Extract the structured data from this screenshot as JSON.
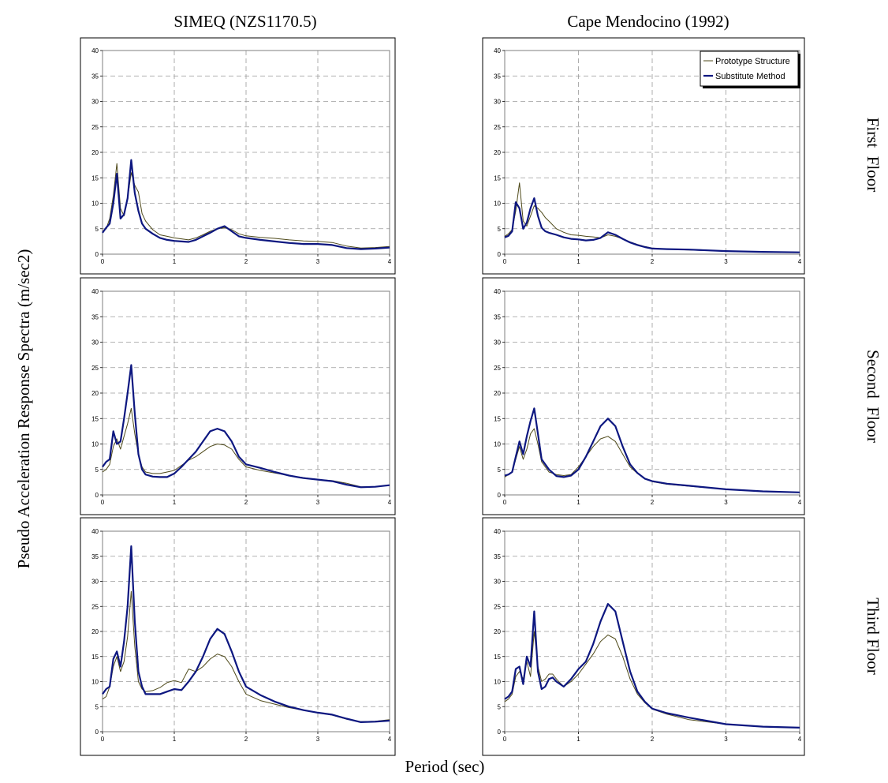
{
  "figure": {
    "ylabel": "Pseudo Acceleration Response Spectra (m/sec2)",
    "xlabel": "Period (sec)",
    "column_titles": [
      "SIMEQ (NZS1170.5)",
      "Cape Mendocino (1992)"
    ],
    "row_labels": [
      "First  Floor",
      "Second  Floor",
      "Third Floor"
    ],
    "legend": [
      "Prototype Structure",
      "Substitute Method"
    ],
    "colors": {
      "prototype": "#4f4a1a",
      "substitute": "#0d1780",
      "grid": "#9a9a9a",
      "frame": "#000000"
    }
  },
  "chart_data": [
    {
      "type": "line",
      "row": "First  Floor",
      "column": "SIMEQ (NZS1170.5)",
      "xlim": [
        0,
        4
      ],
      "ylim": [
        0,
        40
      ],
      "xticks": [
        0,
        1,
        2,
        3,
        4
      ],
      "yticks": [
        0,
        5,
        10,
        15,
        20,
        25,
        30,
        35,
        40
      ],
      "grid": true,
      "legend": false,
      "series": [
        {
          "name": "Prototype Structure",
          "x": [
            0,
            0.05,
            0.1,
            0.15,
            0.2,
            0.25,
            0.3,
            0.35,
            0.4,
            0.45,
            0.5,
            0.55,
            0.6,
            0.7,
            0.8,
            0.9,
            1.0,
            1.1,
            1.2,
            1.3,
            1.4,
            1.5,
            1.6,
            1.7,
            1.8,
            1.9,
            2.0,
            2.2,
            2.4,
            2.6,
            2.8,
            3.0,
            3.2,
            3.4,
            3.6,
            3.8,
            4.0
          ],
          "y": [
            4.5,
            5.0,
            7.0,
            11.5,
            17.8,
            9.0,
            7.5,
            11.0,
            16.0,
            13.5,
            12.2,
            8.0,
            6.5,
            4.8,
            3.8,
            3.5,
            3.2,
            3.0,
            2.8,
            3.2,
            3.8,
            4.5,
            5.0,
            5.2,
            4.8,
            4.0,
            3.6,
            3.3,
            3.1,
            2.8,
            2.6,
            2.5,
            2.3,
            1.6,
            1.2,
            1.3,
            1.5
          ]
        },
        {
          "name": "Substitute Method",
          "x": [
            0,
            0.05,
            0.1,
            0.15,
            0.2,
            0.25,
            0.3,
            0.35,
            0.4,
            0.45,
            0.5,
            0.55,
            0.6,
            0.7,
            0.8,
            0.9,
            1.0,
            1.1,
            1.2,
            1.3,
            1.4,
            1.5,
            1.6,
            1.7,
            1.8,
            1.9,
            2.0,
            2.2,
            2.4,
            2.6,
            2.8,
            3.0,
            3.2,
            3.4,
            3.6,
            3.8,
            4.0
          ],
          "y": [
            4.2,
            5.2,
            6.0,
            10.0,
            15.8,
            7.0,
            7.8,
            11.0,
            18.5,
            12.0,
            8.5,
            6.0,
            5.0,
            4.0,
            3.2,
            2.8,
            2.6,
            2.5,
            2.4,
            2.8,
            3.5,
            4.2,
            5.0,
            5.5,
            4.5,
            3.5,
            3.2,
            2.8,
            2.5,
            2.2,
            2.0,
            2.0,
            1.8,
            1.2,
            1.0,
            1.1,
            1.3
          ]
        }
      ]
    },
    {
      "type": "line",
      "row": "First  Floor",
      "column": "Cape Mendocino (1992)",
      "xlim": [
        0,
        4
      ],
      "ylim": [
        0,
        40
      ],
      "xticks": [
        0,
        1,
        2,
        3,
        4
      ],
      "yticks": [
        0,
        5,
        10,
        15,
        20,
        25,
        30,
        35,
        40
      ],
      "grid": true,
      "legend": true,
      "series": [
        {
          "name": "Prototype Structure",
          "x": [
            0,
            0.05,
            0.1,
            0.15,
            0.2,
            0.25,
            0.3,
            0.35,
            0.4,
            0.45,
            0.5,
            0.55,
            0.6,
            0.7,
            0.8,
            0.9,
            1.0,
            1.1,
            1.2,
            1.3,
            1.4,
            1.5,
            1.6,
            1.7,
            1.8,
            1.9,
            2.0,
            2.2,
            2.5,
            3.0,
            3.5,
            4.0
          ],
          "y": [
            3.5,
            4.0,
            4.8,
            8.5,
            14.0,
            6.5,
            5.5,
            7.5,
            9.5,
            9.0,
            8.2,
            7.2,
            6.5,
            5.0,
            4.3,
            3.8,
            3.7,
            3.5,
            3.4,
            3.2,
            3.8,
            3.5,
            3.0,
            2.4,
            1.9,
            1.5,
            1.2,
            1.0,
            0.8,
            0.6,
            0.45,
            0.35
          ]
        },
        {
          "name": "Substitute Method",
          "x": [
            0,
            0.05,
            0.1,
            0.15,
            0.2,
            0.25,
            0.3,
            0.35,
            0.4,
            0.45,
            0.5,
            0.55,
            0.6,
            0.7,
            0.8,
            0.9,
            1.0,
            1.1,
            1.2,
            1.3,
            1.4,
            1.5,
            1.6,
            1.7,
            1.8,
            1.9,
            2.0,
            2.2,
            2.5,
            3.0,
            3.5,
            4.0
          ],
          "y": [
            3.3,
            3.6,
            4.5,
            10.2,
            9.0,
            5.0,
            6.2,
            9.0,
            11.0,
            7.5,
            5.2,
            4.5,
            4.2,
            3.8,
            3.3,
            3.0,
            2.9,
            2.7,
            2.8,
            3.2,
            4.3,
            3.8,
            3.0,
            2.3,
            1.8,
            1.4,
            1.1,
            1.0,
            0.9,
            0.6,
            0.45,
            0.35
          ]
        }
      ]
    },
    {
      "type": "line",
      "row": "Second  Floor",
      "column": "SIMEQ (NZS1170.5)",
      "xlim": [
        0,
        4
      ],
      "ylim": [
        0,
        40
      ],
      "xticks": [
        0,
        1,
        2,
        3,
        4
      ],
      "yticks": [
        0,
        5,
        10,
        15,
        20,
        25,
        30,
        35,
        40
      ],
      "grid": true,
      "legend": false,
      "series": [
        {
          "name": "Prototype Structure",
          "x": [
            0,
            0.05,
            0.1,
            0.15,
            0.2,
            0.25,
            0.3,
            0.35,
            0.4,
            0.45,
            0.5,
            0.55,
            0.6,
            0.7,
            0.8,
            0.9,
            1.0,
            1.1,
            1.2,
            1.3,
            1.4,
            1.5,
            1.6,
            1.7,
            1.8,
            1.9,
            2.0,
            2.2,
            2.4,
            2.6,
            2.8,
            3.0,
            3.2,
            3.4,
            3.6,
            3.8,
            4.0
          ],
          "y": [
            4.5,
            5.0,
            6.0,
            9.5,
            11.0,
            9.0,
            11.5,
            14.0,
            17.0,
            12.0,
            8.0,
            5.5,
            4.5,
            4.2,
            4.2,
            4.5,
            4.8,
            5.8,
            6.8,
            7.5,
            8.5,
            9.5,
            10.0,
            9.8,
            9.0,
            7.0,
            5.5,
            4.8,
            4.3,
            3.8,
            3.4,
            3.0,
            2.8,
            2.3,
            1.6,
            1.6,
            1.9
          ]
        },
        {
          "name": "Substitute Method",
          "x": [
            0,
            0.05,
            0.1,
            0.15,
            0.2,
            0.25,
            0.3,
            0.35,
            0.4,
            0.45,
            0.5,
            0.55,
            0.6,
            0.7,
            0.8,
            0.9,
            1.0,
            1.1,
            1.2,
            1.3,
            1.4,
            1.5,
            1.6,
            1.7,
            1.8,
            1.9,
            2.0,
            2.2,
            2.4,
            2.6,
            2.8,
            3.0,
            3.2,
            3.4,
            3.6,
            3.8,
            4.0
          ],
          "y": [
            5.5,
            6.5,
            7.0,
            12.5,
            10.0,
            10.5,
            15.0,
            20.0,
            25.5,
            16.0,
            8.0,
            5.0,
            4.0,
            3.6,
            3.5,
            3.5,
            4.2,
            5.5,
            7.0,
            8.5,
            10.5,
            12.5,
            13.0,
            12.5,
            10.5,
            7.5,
            6.0,
            5.3,
            4.5,
            3.8,
            3.3,
            3.0,
            2.7,
            2.0,
            1.5,
            1.6,
            1.9
          ]
        }
      ]
    },
    {
      "type": "line",
      "row": "Second  Floor",
      "column": "Cape Mendocino (1992)",
      "xlim": [
        0,
        4
      ],
      "ylim": [
        0,
        40
      ],
      "xticks": [
        0,
        1,
        2,
        3,
        4
      ],
      "yticks": [
        0,
        5,
        10,
        15,
        20,
        25,
        30,
        35,
        40
      ],
      "grid": true,
      "legend": false,
      "series": [
        {
          "name": "Prototype Structure",
          "x": [
            0,
            0.05,
            0.1,
            0.15,
            0.2,
            0.25,
            0.3,
            0.35,
            0.4,
            0.45,
            0.5,
            0.6,
            0.7,
            0.8,
            0.9,
            1.0,
            1.1,
            1.2,
            1.3,
            1.4,
            1.5,
            1.6,
            1.7,
            1.8,
            1.9,
            2.0,
            2.2,
            2.5,
            3.0,
            3.5,
            4.0
          ],
          "y": [
            3.5,
            4.0,
            4.5,
            7.0,
            9.5,
            7.0,
            9.0,
            12.0,
            13.0,
            10.0,
            6.5,
            4.5,
            4.0,
            3.8,
            4.0,
            5.5,
            7.5,
            9.5,
            11.0,
            11.5,
            10.5,
            8.0,
            5.5,
            4.2,
            3.2,
            2.6,
            2.1,
            1.7,
            1.1,
            0.7,
            0.5
          ]
        },
        {
          "name": "Substitute Method",
          "x": [
            0,
            0.05,
            0.1,
            0.15,
            0.2,
            0.25,
            0.3,
            0.35,
            0.4,
            0.45,
            0.5,
            0.6,
            0.7,
            0.8,
            0.9,
            1.0,
            1.1,
            1.2,
            1.3,
            1.4,
            1.5,
            1.6,
            1.7,
            1.8,
            1.9,
            2.0,
            2.2,
            2.5,
            3.0,
            3.5,
            4.0
          ],
          "y": [
            3.8,
            4.0,
            4.5,
            7.5,
            10.5,
            8.0,
            11.5,
            14.5,
            17.0,
            12.0,
            7.0,
            5.0,
            3.7,
            3.5,
            3.8,
            5.0,
            7.5,
            10.5,
            13.5,
            15.0,
            13.5,
            9.5,
            6.0,
            4.3,
            3.2,
            2.7,
            2.2,
            1.8,
            1.1,
            0.7,
            0.5
          ]
        }
      ]
    },
    {
      "type": "line",
      "row": "Third Floor",
      "column": "SIMEQ (NZS1170.5)",
      "xlim": [
        0,
        4
      ],
      "ylim": [
        0,
        40
      ],
      "xticks": [
        0,
        1,
        2,
        3,
        4
      ],
      "yticks": [
        0,
        5,
        10,
        15,
        20,
        25,
        30,
        35,
        40
      ],
      "grid": true,
      "legend": false,
      "series": [
        {
          "name": "Prototype Structure",
          "x": [
            0,
            0.05,
            0.1,
            0.15,
            0.2,
            0.25,
            0.3,
            0.35,
            0.4,
            0.45,
            0.5,
            0.55,
            0.6,
            0.7,
            0.8,
            0.9,
            1.0,
            1.1,
            1.2,
            1.3,
            1.4,
            1.5,
            1.6,
            1.7,
            1.8,
            1.9,
            2.0,
            2.2,
            2.4,
            2.6,
            2.8,
            3.0,
            3.2,
            3.4,
            3.6,
            3.8,
            4.0
          ],
          "y": [
            6.5,
            7.0,
            9.0,
            13.0,
            15.0,
            12.0,
            14.0,
            19.0,
            28.0,
            17.0,
            10.0,
            8.5,
            8.0,
            8.2,
            8.8,
            9.8,
            10.2,
            9.8,
            12.5,
            12.0,
            13.0,
            14.5,
            15.5,
            15.0,
            13.0,
            10.0,
            7.5,
            6.2,
            5.5,
            4.8,
            4.3,
            3.8,
            3.3,
            2.5,
            2.0,
            2.1,
            2.4
          ]
        },
        {
          "name": "Substitute Method",
          "x": [
            0,
            0.05,
            0.1,
            0.15,
            0.2,
            0.25,
            0.3,
            0.35,
            0.4,
            0.45,
            0.5,
            0.55,
            0.6,
            0.7,
            0.8,
            0.9,
            1.0,
            1.1,
            1.2,
            1.3,
            1.4,
            1.5,
            1.6,
            1.7,
            1.8,
            1.9,
            2.0,
            2.2,
            2.4,
            2.6,
            2.8,
            3.0,
            3.2,
            3.4,
            3.6,
            3.8,
            4.0
          ],
          "y": [
            7.5,
            8.5,
            9.0,
            14.5,
            16.0,
            13.0,
            18.0,
            25.0,
            37.0,
            22.0,
            12.0,
            9.0,
            7.5,
            7.5,
            7.5,
            8.0,
            8.5,
            8.3,
            10.0,
            12.0,
            15.0,
            18.5,
            20.5,
            19.5,
            16.0,
            12.0,
            9.0,
            7.3,
            6.0,
            5.0,
            4.3,
            3.8,
            3.4,
            2.6,
            1.9,
            2.0,
            2.2
          ]
        }
      ]
    },
    {
      "type": "line",
      "row": "Third Floor",
      "column": "Cape Mendocino (1992)",
      "xlim": [
        0,
        4
      ],
      "ylim": [
        0,
        40
      ],
      "xticks": [
        0,
        1,
        2,
        3,
        4
      ],
      "yticks": [
        0,
        5,
        10,
        15,
        20,
        25,
        30,
        35,
        40
      ],
      "grid": true,
      "legend": false,
      "series": [
        {
          "name": "Prototype Structure",
          "x": [
            0,
            0.05,
            0.1,
            0.15,
            0.2,
            0.25,
            0.3,
            0.35,
            0.4,
            0.45,
            0.5,
            0.55,
            0.6,
            0.65,
            0.7,
            0.8,
            0.9,
            1.0,
            1.1,
            1.2,
            1.3,
            1.4,
            1.5,
            1.6,
            1.7,
            1.8,
            1.9,
            2.0,
            2.2,
            2.5,
            3.0,
            3.5,
            4.0
          ],
          "y": [
            6.0,
            6.5,
            7.5,
            11.0,
            12.0,
            10.5,
            14.0,
            11.0,
            20.0,
            13.0,
            10.0,
            10.5,
            11.5,
            11.5,
            10.5,
            9.0,
            10.0,
            11.5,
            13.5,
            15.5,
            18.0,
            19.3,
            18.5,
            15.0,
            10.5,
            7.5,
            5.8,
            4.5,
            3.5,
            2.4,
            1.5,
            1.0,
            0.8
          ]
        },
        {
          "name": "Substitute Method",
          "x": [
            0,
            0.05,
            0.1,
            0.15,
            0.2,
            0.25,
            0.3,
            0.35,
            0.4,
            0.45,
            0.5,
            0.55,
            0.6,
            0.65,
            0.7,
            0.8,
            0.9,
            1.0,
            1.1,
            1.2,
            1.3,
            1.4,
            1.5,
            1.6,
            1.7,
            1.8,
            1.9,
            2.0,
            2.2,
            2.5,
            3.0,
            3.5,
            4.0
          ],
          "y": [
            6.5,
            7.0,
            8.0,
            12.5,
            13.0,
            9.5,
            15.0,
            13.0,
            24.0,
            12.0,
            8.5,
            9.0,
            10.5,
            10.8,
            10.0,
            9.0,
            10.5,
            12.5,
            14.0,
            17.5,
            22.0,
            25.5,
            24.0,
            18.0,
            12.0,
            8.0,
            6.0,
            4.6,
            3.7,
            2.8,
            1.5,
            1.0,
            0.8
          ]
        }
      ]
    }
  ]
}
